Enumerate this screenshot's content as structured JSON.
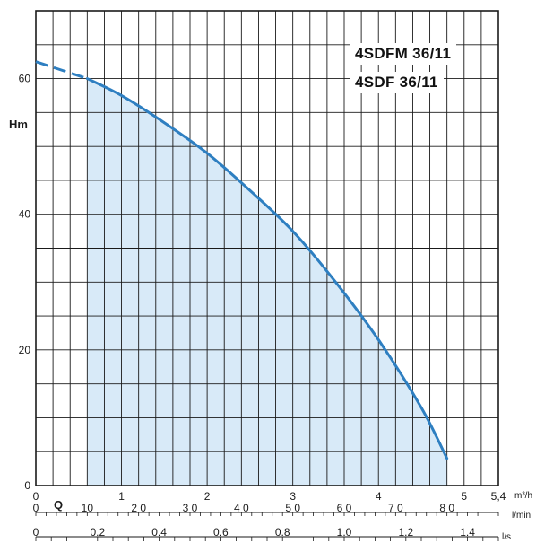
{
  "chart_data": {
    "type": "area",
    "title": "",
    "labels": [
      "4SDFM 36/11",
      "4SDF 36/11"
    ],
    "ylabel": "Hm",
    "ylim": [
      0,
      70
    ],
    "y_ticks": [
      0,
      20,
      40,
      60
    ],
    "grid": true,
    "x_axes": [
      {
        "name": "Q",
        "unit": "m³/h",
        "range": [
          0,
          5.4
        ],
        "tick_values": [
          0,
          1,
          2,
          3,
          4,
          5,
          5.4
        ],
        "tick_labels": [
          "0",
          "1",
          "2",
          "3",
          "4",
          "5",
          "5,4"
        ]
      },
      {
        "unit": "l/min",
        "range": [
          0,
          90
        ],
        "tick_values": [
          0,
          10,
          20,
          30,
          40,
          50,
          60,
          70,
          80
        ],
        "tick_labels": [
          "0",
          "10",
          "2 0",
          "3 0",
          "4 0",
          "5 0",
          "6 0",
          "7 0",
          "8 0"
        ]
      },
      {
        "unit": "l/s",
        "range": [
          0,
          1.5
        ],
        "tick_values": [
          0,
          0.2,
          0.4,
          0.6,
          0.8,
          1.0,
          1.2,
          1.4
        ],
        "tick_labels": [
          "0",
          "0.2",
          "0.4",
          "0.6",
          "0.8",
          "1.0",
          "1.2",
          "1.4"
        ]
      }
    ],
    "series": [
      {
        "x_unit": "m³/h",
        "dashed_segment": [
          [
            0,
            62.5
          ],
          [
            0.6,
            60
          ]
        ],
        "points": [
          [
            0.6,
            60
          ],
          [
            1.0,
            57.5
          ],
          [
            1.5,
            53.5
          ],
          [
            2.0,
            49
          ],
          [
            2.5,
            43.5
          ],
          [
            3.0,
            37.5
          ],
          [
            3.5,
            30
          ],
          [
            4.0,
            21.5
          ],
          [
            4.5,
            11.5
          ],
          [
            4.8,
            4
          ]
        ],
        "shaded": true,
        "line_color": "#2e7fc1",
        "fill_color": "#d8eaf8"
      }
    ]
  }
}
